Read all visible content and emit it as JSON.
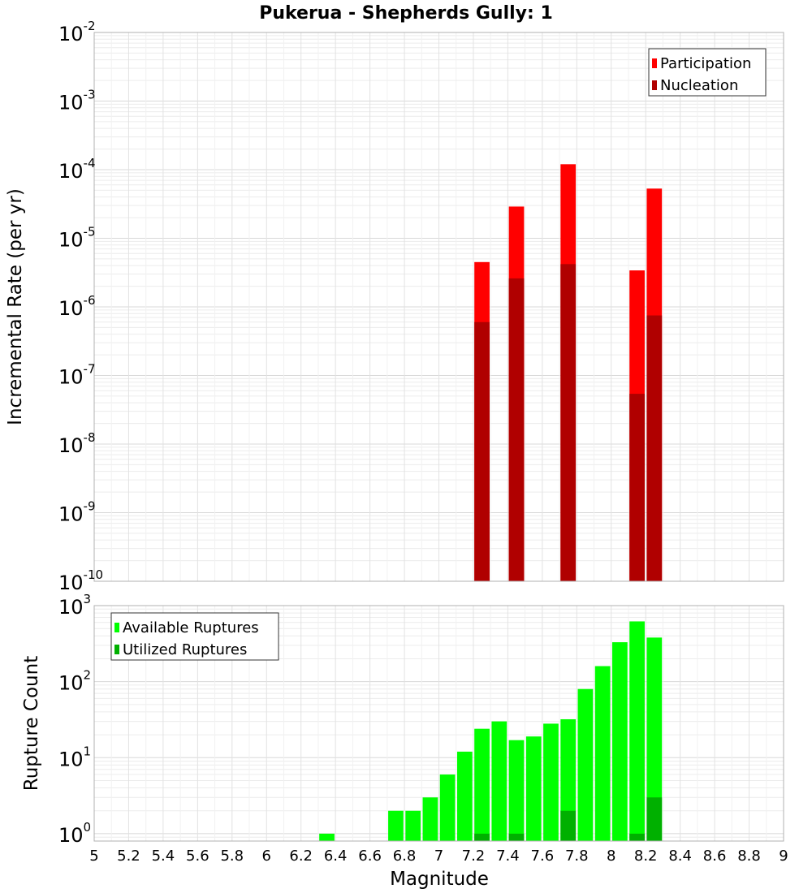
{
  "title": "Pukerua - Shepherds Gully: 1",
  "xlabel": "Magnitude",
  "x_ticks": [
    "5",
    "5.2",
    "5.4",
    "5.6",
    "5.8",
    "6",
    "6.2",
    "6.4",
    "6.6",
    "6.8",
    "7",
    "7.2",
    "7.4",
    "7.6",
    "7.8",
    "8",
    "8.2",
    "8.4",
    "8.6",
    "8.8",
    "9"
  ],
  "chart_data": [
    {
      "type": "bar",
      "scale": "log",
      "ylabel": "Incremental Rate (per yr)",
      "xlim": [
        5,
        9
      ],
      "ylim": [
        1e-10,
        0.01
      ],
      "y_tick_exponents": [
        -10,
        -9,
        -8,
        -7,
        -6,
        -5,
        -4,
        -3,
        -2
      ],
      "grid": true,
      "legend_position": "top-right",
      "x": [
        7.25,
        7.45,
        7.75,
        8.15,
        8.25
      ],
      "series": [
        {
          "name": "Participation",
          "color": "#ff0000",
          "values": [
            4.5e-06,
            2.9e-05,
            0.00012,
            3.4e-06,
            5.3e-05
          ]
        },
        {
          "name": "Nucleation",
          "color": "#b00000",
          "values": [
            6e-07,
            2.6e-06,
            4.2e-06,
            5.4e-08,
            7.5e-07
          ]
        }
      ]
    },
    {
      "type": "bar",
      "scale": "log",
      "ylabel": "Rupture Count",
      "xlim": [
        5,
        9
      ],
      "ylim": [
        0.8,
        1000
      ],
      "y_tick_exponents": [
        0,
        1,
        2,
        3
      ],
      "grid": true,
      "legend_position": "top-left",
      "x": [
        6.35,
        6.75,
        6.85,
        6.95,
        7.05,
        7.15,
        7.25,
        7.35,
        7.45,
        7.55,
        7.65,
        7.75,
        7.85,
        7.95,
        8.05,
        8.15,
        8.25
      ],
      "series": [
        {
          "name": "Available Ruptures",
          "color": "#00ff00",
          "values": [
            1,
            2,
            2,
            3,
            6,
            12,
            24,
            30,
            17,
            19,
            28,
            32,
            80,
            160,
            330,
            620,
            380
          ]
        },
        {
          "name": "Utilized Ruptures",
          "color": "#00b000",
          "values": [
            0,
            0,
            0,
            0,
            0,
            0,
            1,
            0,
            1,
            0,
            0,
            2,
            0,
            0,
            0,
            1,
            3
          ]
        }
      ]
    }
  ]
}
